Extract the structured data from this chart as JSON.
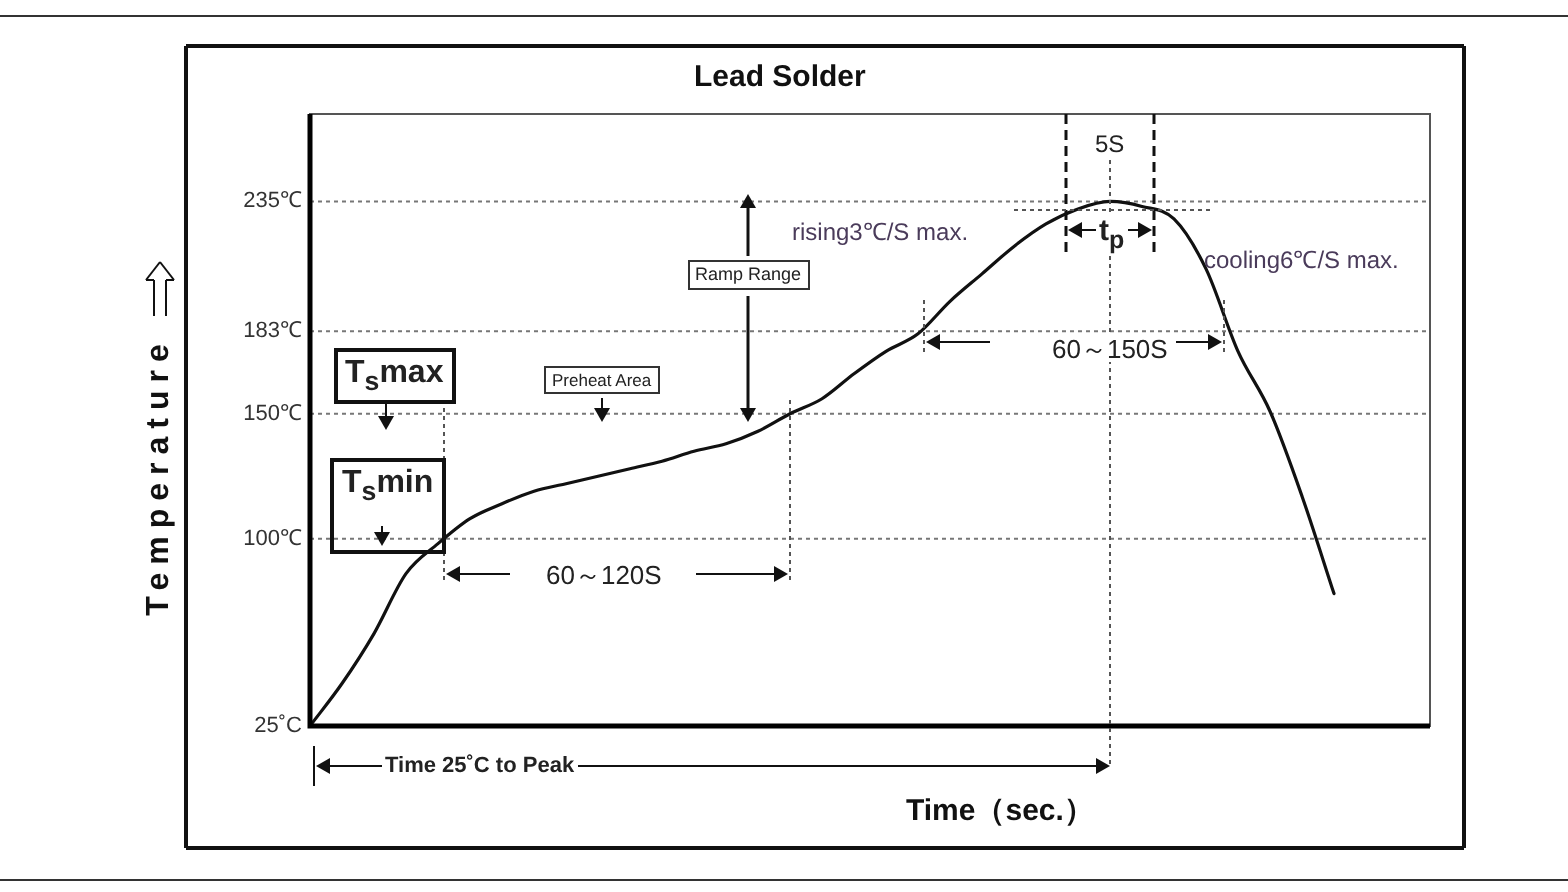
{
  "chart_data": {
    "type": "line",
    "title": "Lead Solder",
    "xlabel": "Time（sec.）",
    "ylabel": "Temperature",
    "categories": [
      null,
      null,
      null,
      null,
      null,
      null,
      null,
      null,
      null,
      null,
      null,
      null,
      null,
      null,
      null,
      null,
      null,
      null,
      null,
      null,
      null,
      null,
      null,
      null,
      null,
      null,
      null,
      null,
      null,
      null,
      null,
      null,
      null,
      null,
      null,
      null
    ],
    "series": [
      {
        "color": "#111111",
        "values": [
          25,
          42,
          62,
          86,
          98,
          108,
          114,
          119,
          122,
          125,
          128,
          131,
          135,
          138,
          143,
          150,
          156,
          166,
          175,
          182,
          195,
          206,
          217,
          226,
          232,
          235,
          233,
          228,
          208,
          175,
          151,
          117,
          78,
          null,
          null,
          null
        ]
      }
    ],
    "ylim": [
      25,
      270
    ],
    "yticks": [
      {
        "value": 25,
        "label": "25˚C"
      },
      {
        "value": 100,
        "label": "100℃"
      },
      {
        "value": 150,
        "label": "150℃"
      },
      {
        "value": 183,
        "label": "183℃"
      },
      {
        "value": 235,
        "label": "235℃"
      }
    ],
    "tick_labels": "y",
    "grid": false,
    "legend": false,
    "marker": "none",
    "line_style": "solid",
    "ref_lines": [
      {
        "axis": "y",
        "value": 235,
        "color": "#777777",
        "line_style": "dotted"
      },
      {
        "axis": "y",
        "value": 183,
        "color": "#777777",
        "line_style": "dotted"
      },
      {
        "axis": "y",
        "value": 150,
        "color": "#777777",
        "line_style": "dotted"
      },
      {
        "axis": "y",
        "value": 100,
        "color": "#777777",
        "line_style": "dotted"
      }
    ],
    "annotations": [
      "Ramp Range",
      "Preheat Area",
      "rising3℃/S max.",
      "5S",
      "t$_{p}$",
      "cooling6℃/S max.",
      "60～150S",
      "60～120S",
      "T$_{s}$max",
      "T$_{s}$min",
      "Time 25˚C to Peak"
    ]
  }
}
